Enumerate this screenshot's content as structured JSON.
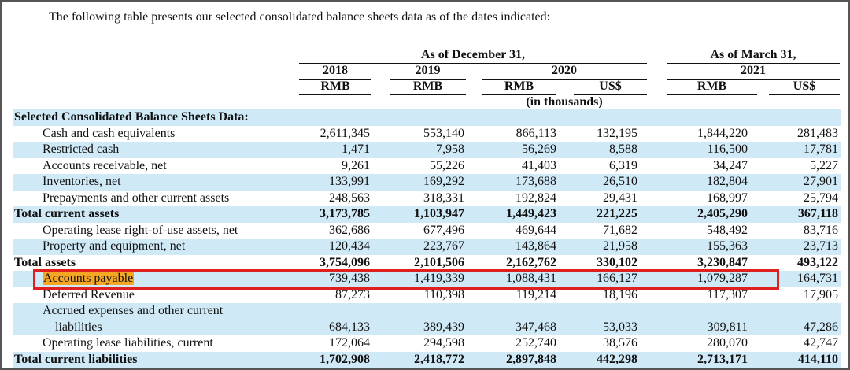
{
  "intro": "The following table presents our selected consolidated balance sheets data as of the dates indicated:",
  "header": {
    "group_dec": "As of December 31,",
    "group_mar": "As of March 31,",
    "years": [
      "2018",
      "2019",
      "2020",
      "2021"
    ],
    "currencies": [
      "RMB",
      "RMB",
      "RMB",
      "US$",
      "RMB",
      "US$"
    ],
    "unit": "(in thousands)"
  },
  "table": {
    "section_title": "Selected Consolidated Balance Sheets Data:",
    "rows": [
      {
        "label": "Cash and cash equivalents",
        "values": [
          "2,611,345",
          "553,140",
          "866,113",
          "132,195",
          "1,844,220",
          "281,483"
        ]
      },
      {
        "label": "Restricted cash",
        "values": [
          "1,471",
          "7,958",
          "56,269",
          "8,588",
          "116,500",
          "17,781"
        ]
      },
      {
        "label": "Accounts receivable, net",
        "values": [
          "9,261",
          "55,226",
          "41,403",
          "6,319",
          "34,247",
          "5,227"
        ]
      },
      {
        "label": "Inventories, net",
        "values": [
          "133,991",
          "169,292",
          "173,688",
          "26,510",
          "182,804",
          "27,901"
        ]
      },
      {
        "label": "Prepayments and other current assets",
        "values": [
          "248,563",
          "318,331",
          "192,824",
          "29,431",
          "168,997",
          "25,794"
        ]
      },
      {
        "label": "Total current assets",
        "total": true,
        "values": [
          "3,173,785",
          "1,103,947",
          "1,449,423",
          "221,225",
          "2,405,290",
          "367,118"
        ]
      },
      {
        "label": "Operating lease right-of-use assets, net",
        "values": [
          "362,686",
          "677,496",
          "469,644",
          "71,682",
          "548,492",
          "83,716"
        ]
      },
      {
        "label": "Property and equipment, net",
        "values": [
          "120,434",
          "223,767",
          "143,864",
          "21,958",
          "155,363",
          "23,713"
        ]
      },
      {
        "label": "Total assets",
        "total": true,
        "values": [
          "3,754,096",
          "2,101,506",
          "2,162,762",
          "330,102",
          "3,230,847",
          "493,122"
        ]
      },
      {
        "label": "Accounts payable",
        "highlight": true,
        "values": [
          "739,438",
          "1,419,339",
          "1,088,431",
          "166,127",
          "1,079,287",
          "164,731"
        ]
      },
      {
        "label": "Deferred Revenue",
        "values": [
          "87,273",
          "110,398",
          "119,214",
          "18,196",
          "117,307",
          "17,905"
        ]
      },
      {
        "label": "Accrued expenses and other current",
        "label_cont": "liabilities",
        "values": [
          "684,133",
          "389,439",
          "347,468",
          "53,033",
          "309,811",
          "47,286"
        ]
      },
      {
        "label": "Operating lease liabilities, current",
        "values": [
          "172,064",
          "294,598",
          "252,740",
          "38,576",
          "280,070",
          "42,747"
        ]
      },
      {
        "label": "Total current liabilities",
        "total": true,
        "values": [
          "1,702,908",
          "2,418,772",
          "2,897,848",
          "442,298",
          "2,713,171",
          "414,110"
        ]
      }
    ]
  }
}
